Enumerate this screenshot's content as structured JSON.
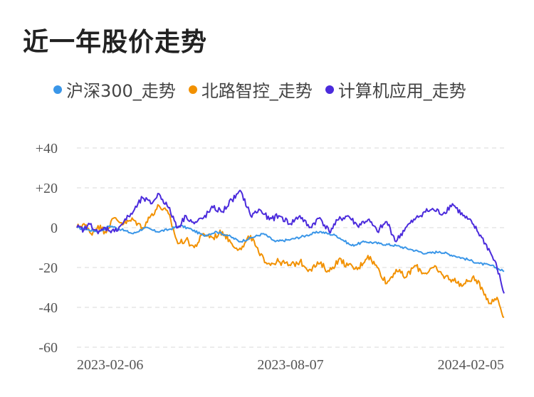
{
  "title": "近一年股价走势",
  "legend": [
    {
      "name": "沪深300_走势",
      "color": "#3a96e8"
    },
    {
      "name": "北路智控_走势",
      "color": "#f29100"
    },
    {
      "name": "计算机应用_走势",
      "color": "#4b2bdc"
    }
  ],
  "chart_data": {
    "type": "line",
    "title": "近一年股价走势",
    "xlabel": "",
    "ylabel": "",
    "x_tick_labels": [
      "2023-02-06",
      "2023-08-07",
      "2024-02-05"
    ],
    "x_range": [
      "2023-02-06",
      "2024-02-05"
    ],
    "y_tick_labels": [
      "+40",
      "+20",
      "0",
      "-20",
      "-40",
      "-60"
    ],
    "y_ticks": [
      40,
      20,
      0,
      -20,
      -40,
      -60
    ],
    "ylim": [
      -60,
      40
    ],
    "grid": "horizontal dashed",
    "legend_position": "top",
    "series": [
      {
        "name": "沪深300_走势",
        "color": "#3a96e8",
        "points": [
          [
            "2023-02-06",
            0
          ],
          [
            "2023-02-15",
            -1
          ],
          [
            "2023-02-25",
            -2
          ],
          [
            "2023-03-06",
            1
          ],
          [
            "2023-03-16",
            -1
          ],
          [
            "2023-03-26",
            -3
          ],
          [
            "2023-04-05",
            0
          ],
          [
            "2023-04-15",
            -2
          ],
          [
            "2023-04-25",
            -1
          ],
          [
            "2023-05-05",
            1
          ],
          [
            "2023-05-15",
            -1
          ],
          [
            "2023-05-25",
            -4
          ],
          [
            "2023-06-05",
            -2
          ],
          [
            "2023-06-15",
            -4
          ],
          [
            "2023-06-25",
            -7
          ],
          [
            "2023-07-05",
            -5
          ],
          [
            "2023-07-15",
            -3
          ],
          [
            "2023-07-25",
            -7
          ],
          [
            "2023-08-07",
            -6
          ],
          [
            "2023-08-20",
            -4
          ],
          [
            "2023-09-01",
            -2
          ],
          [
            "2023-09-15",
            -4
          ],
          [
            "2023-09-28",
            -9
          ],
          [
            "2023-10-10",
            -7
          ],
          [
            "2023-10-22",
            -8
          ],
          [
            "2023-11-05",
            -9
          ],
          [
            "2023-11-18",
            -11
          ],
          [
            "2023-12-01",
            -13
          ],
          [
            "2023-12-12",
            -12
          ],
          [
            "2023-12-24",
            -14
          ],
          [
            "2024-01-05",
            -16
          ],
          [
            "2024-01-15",
            -18
          ],
          [
            "2024-01-25",
            -19
          ],
          [
            "2024-02-05",
            -22
          ]
        ]
      },
      {
        "name": "北路智控_走势",
        "color": "#f29100",
        "points": [
          [
            "2023-02-06",
            0
          ],
          [
            "2023-02-12",
            2
          ],
          [
            "2023-02-18",
            -3
          ],
          [
            "2023-02-24",
            1
          ],
          [
            "2023-03-02",
            -2
          ],
          [
            "2023-03-10",
            5
          ],
          [
            "2023-03-18",
            2
          ],
          [
            "2023-03-26",
            4
          ],
          [
            "2023-04-03",
            0
          ],
          [
            "2023-04-10",
            6
          ],
          [
            "2023-04-17",
            11
          ],
          [
            "2023-04-25",
            7
          ],
          [
            "2023-05-03",
            -8
          ],
          [
            "2023-05-10",
            -6
          ],
          [
            "2023-05-17",
            -10
          ],
          [
            "2023-05-25",
            -3
          ],
          [
            "2023-06-02",
            -5
          ],
          [
            "2023-06-10",
            -2
          ],
          [
            "2023-06-18",
            -8
          ],
          [
            "2023-06-26",
            -11
          ],
          [
            "2023-07-04",
            -4
          ],
          [
            "2023-07-12",
            -14
          ],
          [
            "2023-07-20",
            -18
          ],
          [
            "2023-07-28",
            -17
          ],
          [
            "2023-08-07",
            -19
          ],
          [
            "2023-08-15",
            -17
          ],
          [
            "2023-08-23",
            -21
          ],
          [
            "2023-09-01",
            -18
          ],
          [
            "2023-09-09",
            -22
          ],
          [
            "2023-09-17",
            -16
          ],
          [
            "2023-09-25",
            -19
          ],
          [
            "2023-10-03",
            -21
          ],
          [
            "2023-10-12",
            -14
          ],
          [
            "2023-10-20",
            -20
          ],
          [
            "2023-10-28",
            -28
          ],
          [
            "2023-11-05",
            -21
          ],
          [
            "2023-11-13",
            -25
          ],
          [
            "2023-11-21",
            -19
          ],
          [
            "2023-11-29",
            -23
          ],
          [
            "2023-12-07",
            -20
          ],
          [
            "2023-12-15",
            -24
          ],
          [
            "2023-12-23",
            -26
          ],
          [
            "2024-01-01",
            -29
          ],
          [
            "2024-01-09",
            -25
          ],
          [
            "2024-01-17",
            -30
          ],
          [
            "2024-01-24",
            -38
          ],
          [
            "2024-01-30",
            -35
          ],
          [
            "2024-02-05",
            -45
          ]
        ]
      },
      {
        "name": "计算机应用_走势",
        "color": "#4b2bdc",
        "points": [
          [
            "2023-02-06",
            0
          ],
          [
            "2023-02-12",
            -1
          ],
          [
            "2023-02-18",
            2
          ],
          [
            "2023-02-24",
            -3
          ],
          [
            "2023-03-02",
            0
          ],
          [
            "2023-03-10",
            -2
          ],
          [
            "2023-03-18",
            3
          ],
          [
            "2023-03-26",
            8
          ],
          [
            "2023-04-03",
            15
          ],
          [
            "2023-04-10",
            12
          ],
          [
            "2023-04-17",
            17
          ],
          [
            "2023-04-25",
            10
          ],
          [
            "2023-05-03",
            0
          ],
          [
            "2023-05-10",
            6
          ],
          [
            "2023-05-17",
            2
          ],
          [
            "2023-05-25",
            5
          ],
          [
            "2023-06-02",
            10
          ],
          [
            "2023-06-10",
            8
          ],
          [
            "2023-06-18",
            14
          ],
          [
            "2023-06-26",
            18
          ],
          [
            "2023-07-04",
            6
          ],
          [
            "2023-07-12",
            9
          ],
          [
            "2023-07-20",
            4
          ],
          [
            "2023-07-28",
            6
          ],
          [
            "2023-08-07",
            2
          ],
          [
            "2023-08-15",
            6
          ],
          [
            "2023-08-23",
            0
          ],
          [
            "2023-09-01",
            5
          ],
          [
            "2023-09-09",
            -2
          ],
          [
            "2023-09-17",
            4
          ],
          [
            "2023-09-25",
            6
          ],
          [
            "2023-10-03",
            1
          ],
          [
            "2023-10-12",
            4
          ],
          [
            "2023-10-20",
            -2
          ],
          [
            "2023-10-28",
            3
          ],
          [
            "2023-11-05",
            -7
          ],
          [
            "2023-11-13",
            0
          ],
          [
            "2023-11-21",
            4
          ],
          [
            "2023-11-29",
            8
          ],
          [
            "2023-12-07",
            9
          ],
          [
            "2023-12-15",
            7
          ],
          [
            "2023-12-23",
            12
          ],
          [
            "2024-01-01",
            6
          ],
          [
            "2024-01-09",
            2
          ],
          [
            "2024-01-17",
            -5
          ],
          [
            "2024-01-24",
            -12
          ],
          [
            "2024-01-30",
            -20
          ],
          [
            "2024-02-05",
            -33
          ]
        ]
      }
    ]
  }
}
